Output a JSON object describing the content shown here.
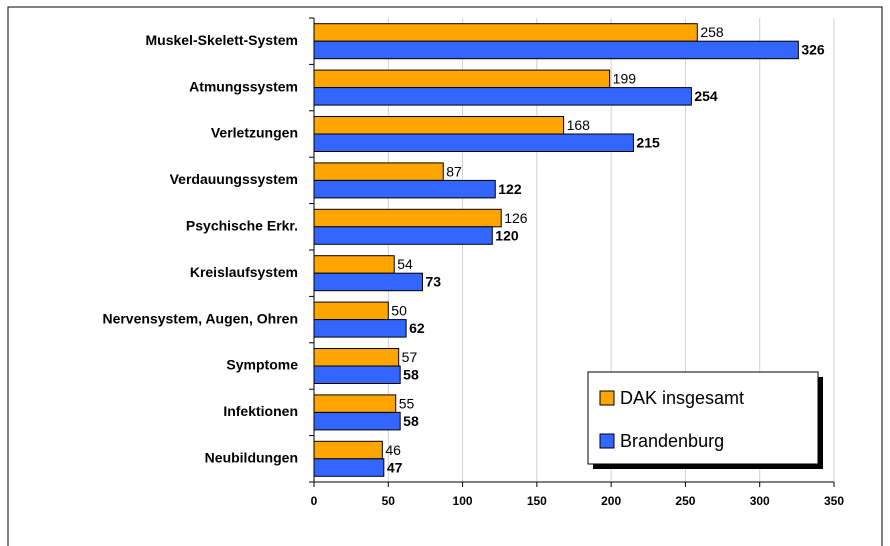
{
  "chart_data": {
    "type": "bar",
    "orientation": "horizontal",
    "categories": [
      "Muskel-Skelett-System",
      "Atmungssystem",
      "Verletzungen",
      "Verdauungssystem",
      "Psychische Erkr.",
      "Kreislaufsystem",
      "Nervensystem, Augen, Ohren",
      "Symptome",
      "Infektionen",
      "Neubildungen"
    ],
    "series": [
      {
        "name": "DAK insgesamt",
        "color": "#ffa500",
        "values": [
          258,
          199,
          168,
          87,
          126,
          54,
          50,
          57,
          55,
          46
        ]
      },
      {
        "name": "Brandenburg",
        "color": "#3366ff",
        "values": [
          326,
          254,
          215,
          122,
          120,
          73,
          62,
          58,
          58,
          47
        ]
      }
    ],
    "xlim": [
      0,
      350
    ],
    "xticks": [
      0,
      50,
      100,
      150,
      200,
      250,
      300,
      350
    ],
    "grid": true,
    "legend": "lower right"
  }
}
